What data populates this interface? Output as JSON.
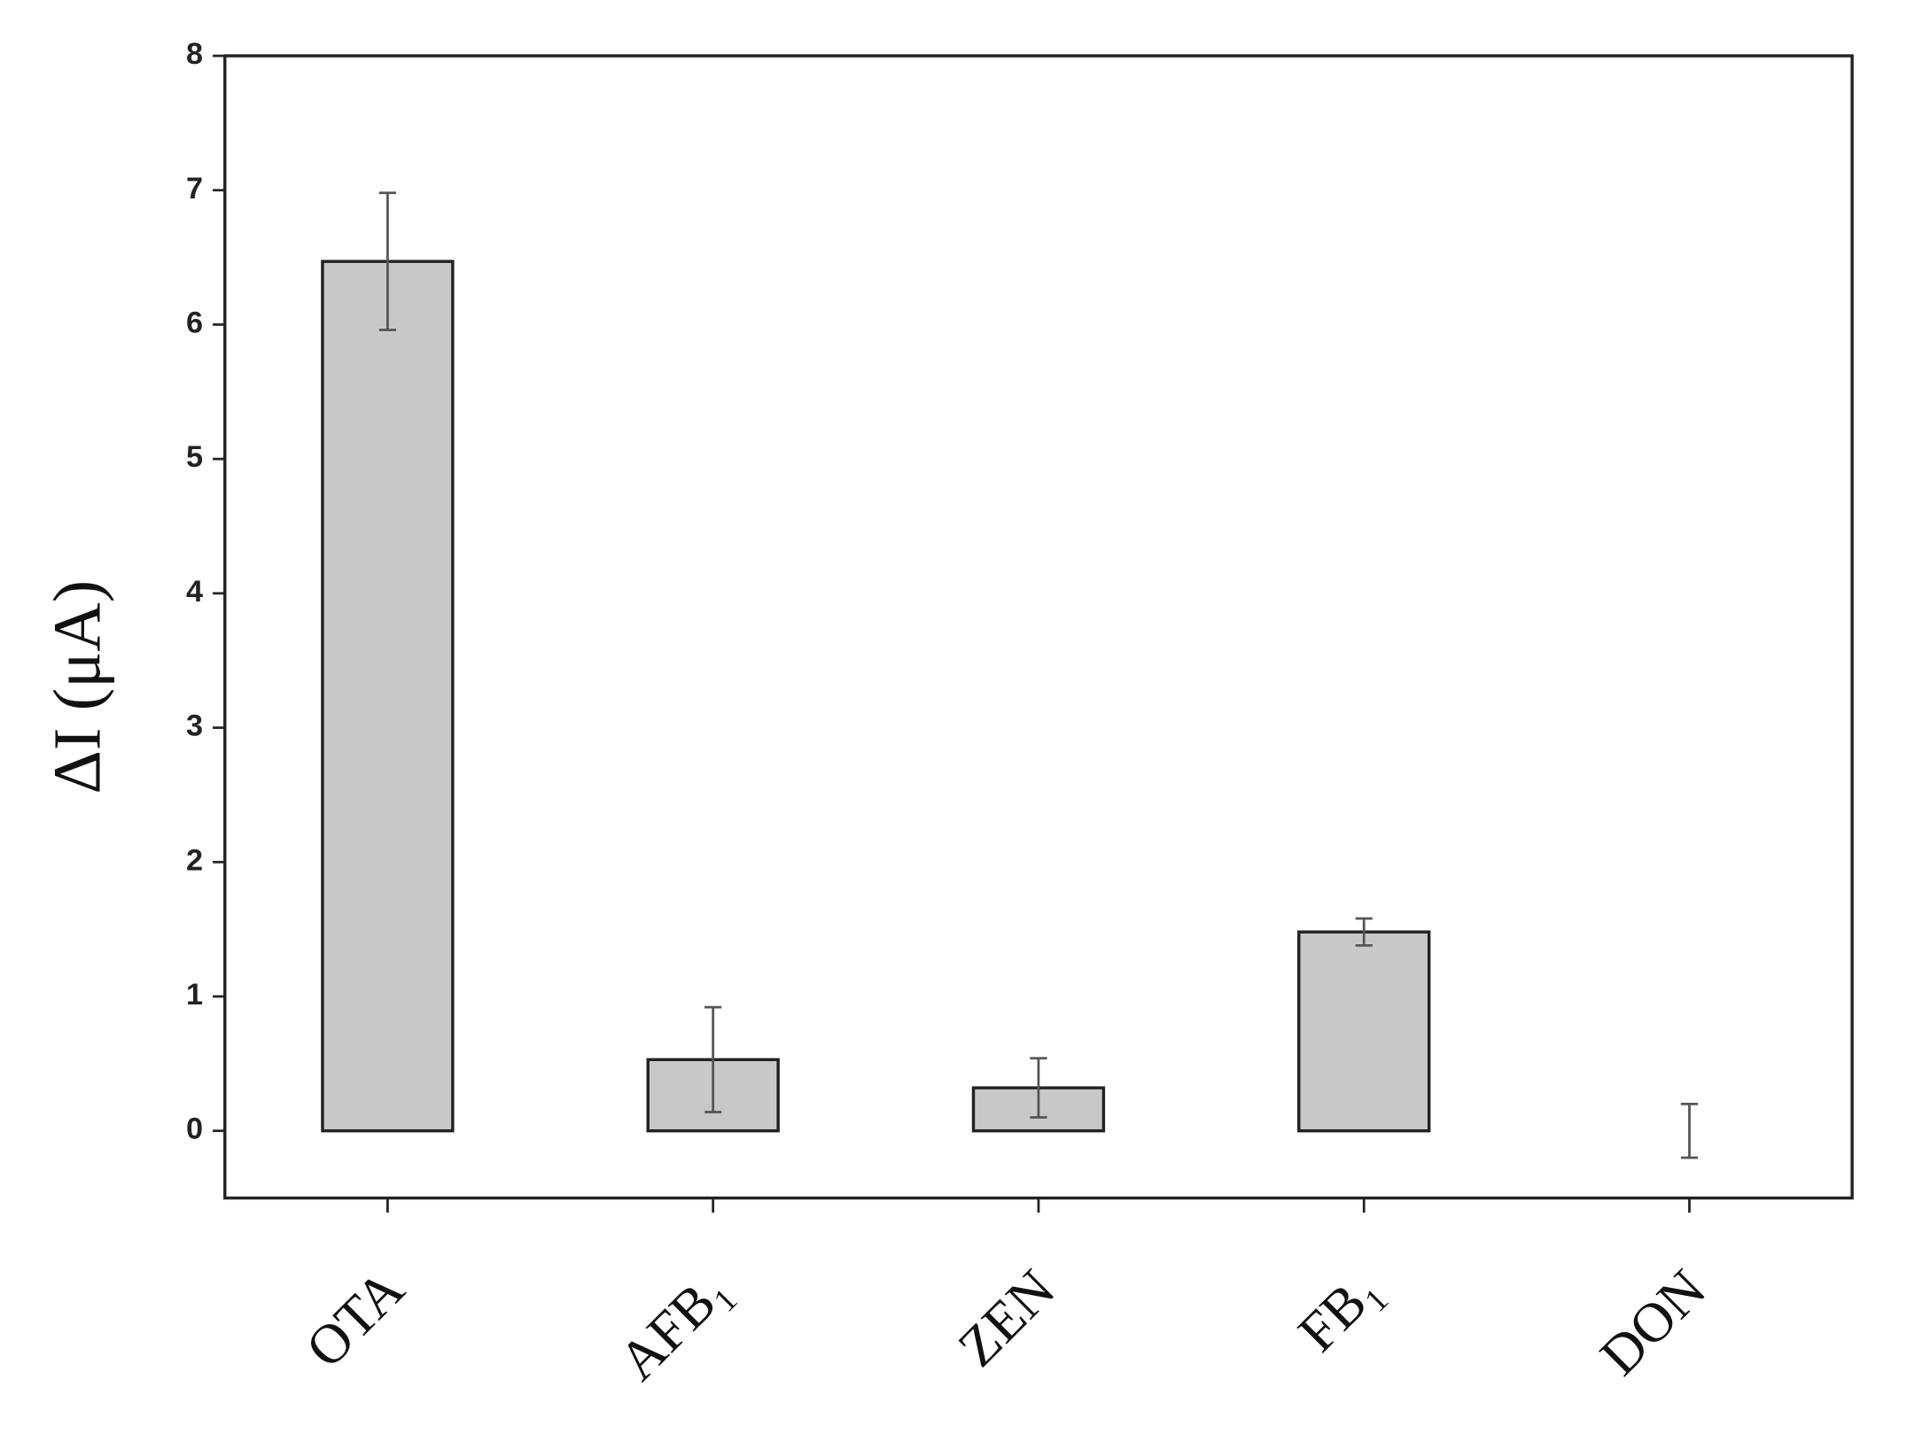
{
  "chart_data": {
    "type": "bar",
    "y_label": "ΔI (μA)",
    "categories": [
      "OTA",
      "AFB₁",
      "ZEN",
      "FB₁",
      "DON"
    ],
    "values": [
      6.47,
      0.53,
      0.32,
      1.48,
      0.0
    ],
    "errors": [
      0.51,
      0.39,
      0.22,
      0.1,
      0.2
    ],
    "color": "#c8c8c8",
    "ylim": [
      -0.5,
      8
    ],
    "yticks": [
      0,
      1,
      2,
      3,
      4,
      5,
      6,
      7,
      8
    ],
    "grid": false
  }
}
